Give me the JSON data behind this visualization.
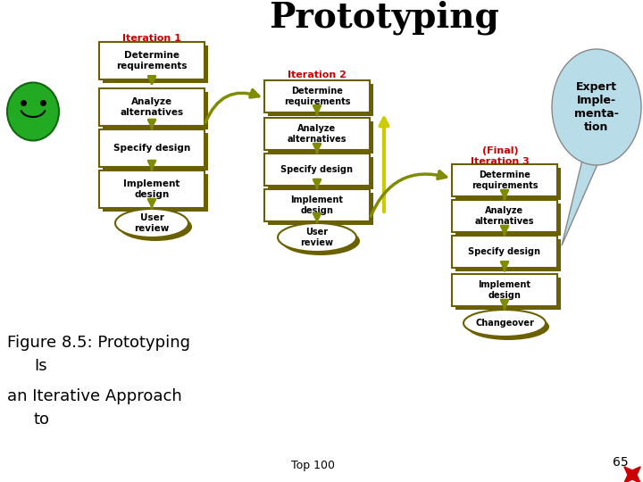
{
  "title": "Prototyping",
  "title_fontsize": 28,
  "bg_color": "#ffffff",
  "figure_caption_line1": "Figure 8.5: Prototyping",
  "figure_caption_line2": "   Is",
  "figure_caption_line3": "an Iterative Approach",
  "figure_caption_line4": "   to",
  "top100_text": "Top 100",
  "page_num": "65",
  "iter1_label": "Iteration 1",
  "iter2_label": "Iteration 2",
  "iter3_label": "(Final)\nIteration 3",
  "expert_text": "Expert\nImple-\nmenta-\ntion",
  "col1_boxes": [
    "Determine\nrequirements",
    "Analyze\nalternatives",
    "Specify design",
    "Implement\ndesign"
  ],
  "col2_boxes": [
    "Determine\nrequirements",
    "Analyze\nalternatives",
    "Specify design",
    "Implement\ndesign"
  ],
  "col3_boxes": [
    "Determine\nrequirements",
    "Analyze\nalternatives",
    "Specify design",
    "Implement\ndesign"
  ],
  "user_review_texts": [
    "User\nreview",
    "User\nreview"
  ],
  "changeover_text": "Changeover",
  "box_facecolor": "#ffffff",
  "box_edgecolor": "#6b6000",
  "box_shadow_color": "#6b6000",
  "arrow_color": "#7f8c00",
  "yellow_arrow_color": "#cccc00",
  "iter_label_color": "#cc0000",
  "expert_bubble_color": "#b8dde8",
  "smiley_color": "#22aa22",
  "star_color": "#cc0000"
}
